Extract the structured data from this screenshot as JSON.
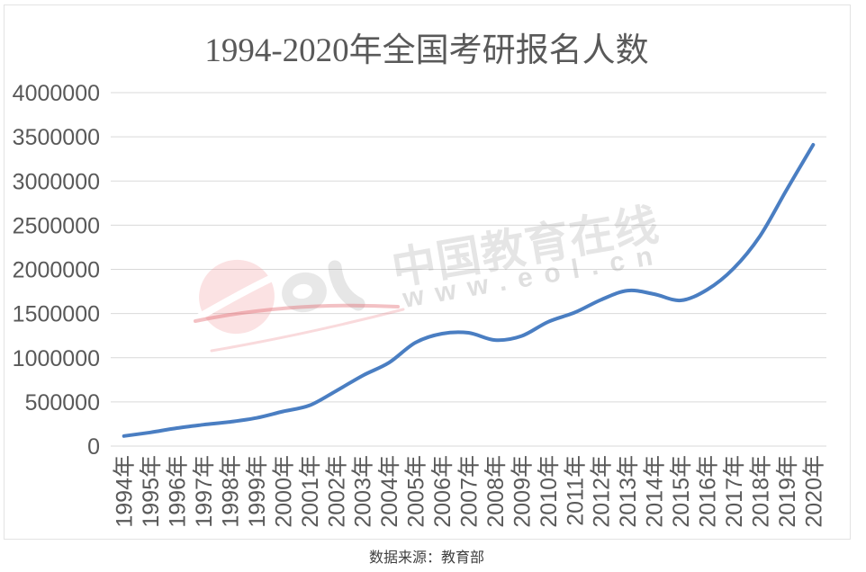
{
  "chart_data": {
    "type": "line",
    "title": "1994-2020年全国考研报名人数",
    "categories": [
      "1994年",
      "1995年",
      "1996年",
      "1997年",
      "1998年",
      "1999年",
      "2000年",
      "2001年",
      "2002年",
      "2003年",
      "2004年",
      "2005年",
      "2006年",
      "2007年",
      "2008年",
      "2009年",
      "2010年",
      "2011年",
      "2012年",
      "2013年",
      "2014年",
      "2015年",
      "2016年",
      "2017年",
      "2018年",
      "2019年",
      "2020年"
    ],
    "values": [
      114000,
      155000,
      204000,
      242000,
      274000,
      319000,
      392000,
      460000,
      624000,
      797000,
      945000,
      1172000,
      1272000,
      1282000,
      1200000,
      1246000,
      1406000,
      1511000,
      1656000,
      1760000,
      1720000,
      1649000,
      1770000,
      2010000,
      2380000,
      2900000,
      3410000
    ],
    "ylim": [
      0,
      4000000
    ],
    "ytick_step": 500000,
    "grid": true,
    "legend": false,
    "line_color": "#4A7EC2",
    "grid_color": "#D9D9D9",
    "axis_text_color": "#595959",
    "source_note": "数据来源：教育部"
  },
  "watermark": {
    "logo": "eol",
    "text": "中国教育在线",
    "url": "www.eol.cn"
  }
}
